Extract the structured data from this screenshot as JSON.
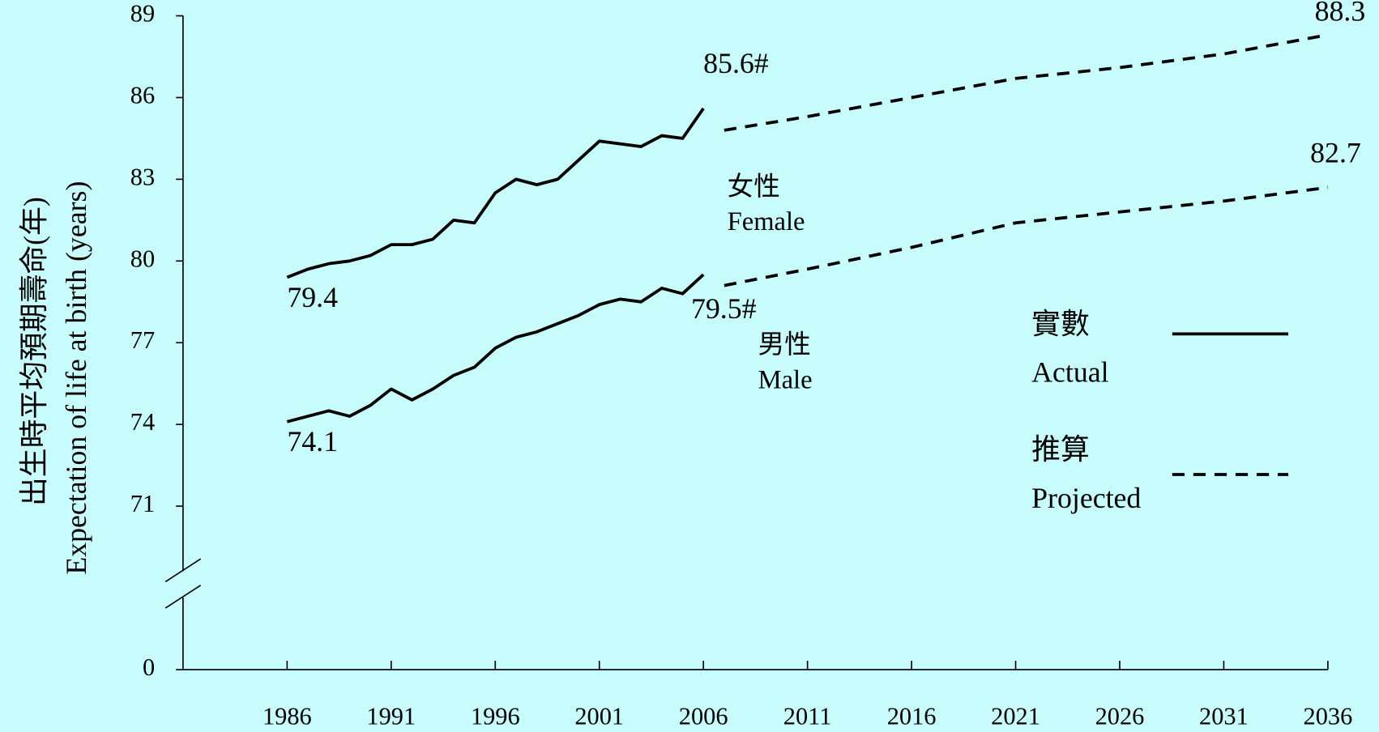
{
  "chart_data": {
    "type": "line",
    "y_label": [
      "出生時平均預期壽命(年)",
      "Expectation of life at birth (years)"
    ],
    "xlim": [
      1981,
      2036
    ],
    "xticks": [
      1986,
      1991,
      1996,
      2001,
      2006,
      2011,
      2016,
      2021,
      2026,
      2031,
      2036
    ],
    "ylim": [
      0,
      89
    ],
    "yticks": [
      0,
      71,
      74,
      77,
      80,
      83,
      86,
      89
    ],
    "axis_break": true,
    "legend_position": "right",
    "legend": {
      "actual_zh": "實數",
      "actual": "Actual",
      "projected_zh": "推算",
      "projected": "Projected"
    },
    "series": [
      {
        "name": "Female",
        "name_zh": "女性",
        "color": "#000000",
        "x": [
          1986,
          1987,
          1988,
          1989,
          1990,
          1991,
          1992,
          1993,
          1994,
          1995,
          1996,
          1997,
          1998,
          1999,
          2000,
          2001,
          2002,
          2003,
          2004,
          2005,
          2006
        ],
        "values": [
          79.4,
          79.7,
          79.9,
          80.0,
          80.2,
          80.6,
          80.6,
          80.8,
          81.5,
          81.4,
          82.5,
          83.0,
          82.8,
          83.0,
          83.7,
          84.4,
          84.3,
          84.2,
          84.6,
          84.5,
          85.6
        ],
        "value_labels": [
          "79.4",
          null,
          null,
          null,
          null,
          null,
          null,
          null,
          null,
          null,
          null,
          null,
          null,
          null,
          null,
          null,
          null,
          null,
          null,
          null,
          "85.6#"
        ],
        "projected_x": [
          2007,
          2011,
          2016,
          2021,
          2026,
          2031,
          2036
        ],
        "projected_values": [
          84.8,
          85.3,
          86.0,
          86.7,
          87.1,
          87.6,
          88.3
        ],
        "projected_value_labels": [
          null,
          null,
          null,
          null,
          null,
          null,
          "88.3"
        ]
      },
      {
        "name": "Male",
        "name_zh": "男性",
        "color": "#000000",
        "x": [
          1986,
          1987,
          1988,
          1989,
          1990,
          1991,
          1992,
          1993,
          1994,
          1995,
          1996,
          1997,
          1998,
          1999,
          2000,
          2001,
          2002,
          2003,
          2004,
          2005,
          2006
        ],
        "values": [
          74.1,
          74.3,
          74.5,
          74.3,
          74.7,
          75.3,
          74.9,
          75.3,
          75.8,
          76.1,
          76.8,
          77.2,
          77.4,
          77.7,
          78.0,
          78.4,
          78.6,
          78.5,
          79.0,
          78.8,
          79.5
        ],
        "value_labels": [
          "74.1",
          null,
          null,
          null,
          null,
          null,
          null,
          null,
          null,
          null,
          null,
          null,
          null,
          null,
          null,
          null,
          null,
          null,
          null,
          null,
          "79.5#"
        ],
        "projected_x": [
          2007,
          2011,
          2016,
          2021,
          2026,
          2031,
          2036
        ],
        "projected_values": [
          79.1,
          79.7,
          80.5,
          81.4,
          81.8,
          82.2,
          82.7
        ],
        "projected_value_labels": [
          null,
          null,
          null,
          null,
          null,
          null,
          "82.7"
        ]
      }
    ]
  }
}
